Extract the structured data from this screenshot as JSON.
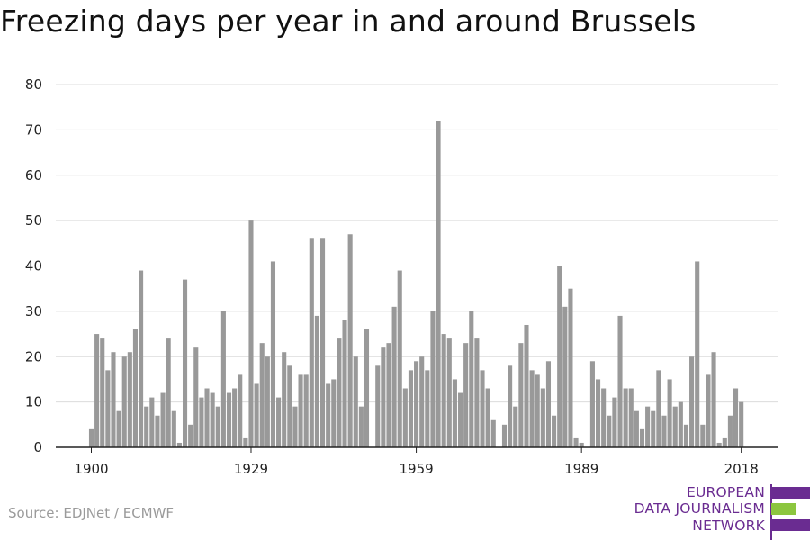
{
  "title": "Freezing days per year in and around Brussels",
  "source": "Source: EDJNet / ECMWF",
  "logo": {
    "lines": [
      "EUROPEAN",
      "DATA JOURNALISM",
      "NETWORK"
    ],
    "colors": [
      "#6a2c91",
      "#8cc63f",
      "#6a2c91"
    ]
  },
  "chart_data": {
    "type": "bar",
    "title": "Freezing days per year in and around Brussels",
    "xlabel": "",
    "ylabel": "",
    "x_start": 1900,
    "x_end": 2018,
    "x_ticks": [
      1900,
      1929,
      1959,
      1989,
      2018
    ],
    "y_ticks": [
      0,
      10,
      20,
      30,
      40,
      50,
      60,
      70,
      80
    ],
    "ylim": [
      0,
      80
    ],
    "grid": true,
    "bar_color": "#999999",
    "values": [
      4,
      25,
      24,
      17,
      21,
      8,
      20,
      21,
      26,
      39,
      9,
      11,
      7,
      12,
      24,
      8,
      1,
      37,
      5,
      22,
      11,
      13,
      12,
      9,
      30,
      12,
      13,
      16,
      2,
      50,
      14,
      23,
      20,
      41,
      11,
      21,
      18,
      9,
      16,
      16,
      46,
      29,
      46,
      14,
      15,
      24,
      28,
      47,
      20,
      9,
      26,
      0,
      18,
      22,
      23,
      31,
      39,
      13,
      17,
      19,
      20,
      17,
      30,
      72,
      25,
      24,
      15,
      12,
      23,
      30,
      24,
      17,
      13,
      6,
      0,
      5,
      18,
      9,
      23,
      27,
      17,
      16,
      13,
      19,
      7,
      40,
      31,
      35,
      2,
      1,
      0,
      19,
      15,
      13,
      7,
      11,
      29,
      13,
      13,
      8,
      4,
      9,
      8,
      17,
      7,
      15,
      9,
      10,
      5,
      20,
      41,
      5,
      16,
      21,
      1,
      2,
      7,
      13,
      10
    ]
  }
}
